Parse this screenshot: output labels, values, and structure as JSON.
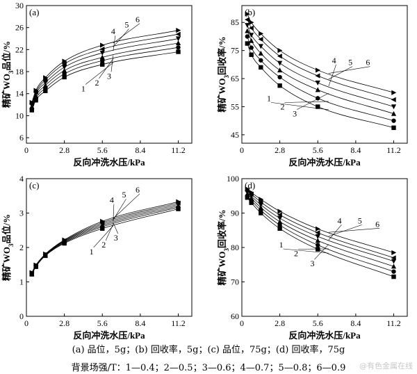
{
  "chart_data": [
    {
      "type": "line",
      "panel": "(a)",
      "xlabel": "反向冲洗水压/kPa",
      "ylabel": "精矿WO3品位/%",
      "xticks": [
        0,
        2.8,
        5.6,
        8.4,
        11.2
      ],
      "xtick_labels": [
        "0",
        "2.8",
        "5.6",
        "8.4",
        "11.2"
      ],
      "yticks": [
        6,
        10,
        14,
        18,
        22,
        26,
        30
      ],
      "xlim": [
        0,
        12.2
      ],
      "ylim": [
        5,
        30
      ],
      "x": [
        0.4,
        0.7,
        1.4,
        2.8,
        5.6,
        11.2
      ],
      "series": [
        {
          "name": "1",
          "marker": "square",
          "values": [
            11.0,
            12.8,
            14.5,
            17.0,
            19.3,
            21.6
          ]
        },
        {
          "name": "2",
          "marker": "circle",
          "values": [
            11.3,
            13.2,
            15.0,
            17.6,
            20.0,
            22.4
          ]
        },
        {
          "name": "3",
          "marker": "triangle-up",
          "values": [
            11.6,
            13.6,
            15.5,
            18.2,
            20.6,
            23.2
          ]
        },
        {
          "name": "4",
          "marker": "triangle-down",
          "values": [
            11.9,
            14.0,
            16.0,
            18.8,
            21.4,
            24.0
          ]
        },
        {
          "name": "5",
          "marker": "triangle-left",
          "values": [
            12.2,
            14.3,
            16.5,
            19.4,
            22.1,
            24.8
          ]
        },
        {
          "name": "6",
          "marker": "triangle-right",
          "values": [
            12.4,
            14.6,
            16.9,
            19.9,
            22.8,
            25.5
          ]
        }
      ],
      "annotations": [
        {
          "text": "1",
          "x": 4.2,
          "y": 14.4
        },
        {
          "text": "2",
          "x": 5.2,
          "y": 15.5
        },
        {
          "text": "3",
          "x": 6.1,
          "y": 16.7
        },
        {
          "text": "4",
          "x": 6.4,
          "y": 24.8
        },
        {
          "text": "5",
          "x": 7.4,
          "y": 26.0
        },
        {
          "text": "6",
          "x": 8.2,
          "y": 27.0
        }
      ]
    },
    {
      "type": "line",
      "panel": "(b)",
      "xlabel": "反向冲洗水压/kPa",
      "ylabel": "精矿WO3回收率/%",
      "xticks": [
        0,
        2.8,
        5.6,
        8.4,
        11.2
      ],
      "xtick_labels": [
        "0",
        "2.8",
        "5.6",
        "8.4",
        "11.2"
      ],
      "yticks": [
        45,
        55,
        65,
        75,
        85
      ],
      "xlim": [
        0,
        12.2
      ],
      "ylim": [
        42,
        91
      ],
      "x": [
        0.4,
        0.7,
        1.4,
        2.8,
        5.6,
        11.2
      ],
      "series": [
        {
          "name": "1",
          "marker": "square",
          "values": [
            77.5,
            73.5,
            69.0,
            62.5,
            55.0,
            47.5
          ]
        },
        {
          "name": "2",
          "marker": "circle",
          "values": [
            80.0,
            76.0,
            71.5,
            65.5,
            58.0,
            50.0
          ]
        },
        {
          "name": "3",
          "marker": "triangle-up",
          "values": [
            82.0,
            78.5,
            74.0,
            68.0,
            61.0,
            52.5
          ]
        },
        {
          "name": "4",
          "marker": "triangle-down",
          "values": [
            84.0,
            80.5,
            76.5,
            70.5,
            63.5,
            55.0
          ]
        },
        {
          "name": "5",
          "marker": "triangle-left",
          "values": [
            86.0,
            83.0,
            79.0,
            73.0,
            66.0,
            57.5
          ]
        },
        {
          "name": "6",
          "marker": "triangle-right",
          "values": [
            88.0,
            85.0,
            81.0,
            75.0,
            68.0,
            60.0
          ]
        }
      ],
      "annotations": [
        {
          "text": "1",
          "x": 2.0,
          "y": 57.0
        },
        {
          "text": "2",
          "x": 3.0,
          "y": 54.0
        },
        {
          "text": "3",
          "x": 3.9,
          "y": 51.5
        },
        {
          "text": "4",
          "x": 6.8,
          "y": 70.5
        },
        {
          "text": "5",
          "x": 8.0,
          "y": 69.8
        },
        {
          "text": "6",
          "x": 9.3,
          "y": 69.8
        }
      ]
    },
    {
      "type": "line",
      "panel": "(c)",
      "xlabel": "反向冲洗水压/kPa",
      "ylabel": "精矿WO3品位/%",
      "xticks": [
        0,
        2.8,
        5.6,
        8.4,
        11.2
      ],
      "xtick_labels": [
        "0",
        "2.8",
        "5.6",
        "8.4",
        "11.2"
      ],
      "yticks": [
        0,
        1,
        2,
        3,
        4
      ],
      "xlim": [
        0,
        12.2
      ],
      "ylim": [
        0,
        4
      ],
      "x": [
        0.4,
        0.7,
        1.4,
        2.8,
        5.6,
        11.2
      ],
      "series": [
        {
          "name": "1",
          "marker": "square",
          "values": [
            1.22,
            1.44,
            1.76,
            2.12,
            2.55,
            3.12
          ]
        },
        {
          "name": "2",
          "marker": "circle",
          "values": [
            1.23,
            1.45,
            1.77,
            2.14,
            2.6,
            3.17
          ]
        },
        {
          "name": "3",
          "marker": "triangle-up",
          "values": [
            1.24,
            1.46,
            1.78,
            2.16,
            2.64,
            3.21
          ]
        },
        {
          "name": "4",
          "marker": "triangle-down",
          "values": [
            1.25,
            1.47,
            1.79,
            2.18,
            2.68,
            3.25
          ]
        },
        {
          "name": "5",
          "marker": "triangle-left",
          "values": [
            1.26,
            1.48,
            1.8,
            2.2,
            2.72,
            3.29
          ]
        },
        {
          "name": "6",
          "marker": "triangle-right",
          "values": [
            1.27,
            1.49,
            1.81,
            2.22,
            2.76,
            3.33
          ]
        }
      ],
      "annotations": [
        {
          "text": "1",
          "x": 4.8,
          "y": 1.8
        },
        {
          "text": "2",
          "x": 5.7,
          "y": 2.0
        },
        {
          "text": "3",
          "x": 6.6,
          "y": 2.2
        },
        {
          "text": "4",
          "x": 6.3,
          "y": 3.3
        },
        {
          "text": "5",
          "x": 7.2,
          "y": 3.45
        },
        {
          "text": "6",
          "x": 8.2,
          "y": 3.6
        }
      ]
    },
    {
      "type": "line",
      "panel": "(d)",
      "xlabel": "反向冲洗水压/kPa",
      "ylabel": "精矿WO3回收率/%",
      "xticks": [
        0,
        2.8,
        5.6,
        8.4,
        11.2
      ],
      "xtick_labels": [
        "0",
        "2.8",
        "5.6",
        "8.4",
        "11.2"
      ],
      "yticks": [
        60,
        70,
        80,
        90,
        100
      ],
      "xlim": [
        0,
        12.2
      ],
      "ylim": [
        60,
        100
      ],
      "x": [
        0.4,
        0.7,
        1.4,
        2.8,
        5.6,
        11.2
      ],
      "series": [
        {
          "name": "1",
          "marker": "square",
          "values": [
            94.5,
            93.0,
            90.0,
            85.5,
            79.5,
            71.5
          ]
        },
        {
          "name": "2",
          "marker": "circle",
          "values": [
            95.0,
            93.7,
            90.8,
            86.5,
            80.7,
            73.0
          ]
        },
        {
          "name": "3",
          "marker": "triangle-up",
          "values": [
            95.5,
            94.3,
            91.6,
            87.5,
            82.0,
            74.5
          ]
        },
        {
          "name": "4",
          "marker": "triangle-down",
          "values": [
            96.0,
            94.9,
            92.4,
            88.5,
            83.2,
            76.0
          ]
        },
        {
          "name": "5",
          "marker": "triangle-left",
          "values": [
            96.5,
            95.5,
            93.2,
            89.5,
            84.3,
            77.0
          ]
        },
        {
          "name": "6",
          "marker": "triangle-right",
          "values": [
            97.0,
            96.0,
            94.0,
            90.5,
            85.4,
            78.5
          ]
        }
      ],
      "annotations": [
        {
          "text": "1",
          "x": 2.9,
          "y": 80.0
        },
        {
          "text": "2",
          "x": 4.0,
          "y": 77.5
        },
        {
          "text": "3",
          "x": 5.2,
          "y": 74.5
        },
        {
          "text": "4",
          "x": 7.2,
          "y": 87.0
        },
        {
          "text": "5",
          "x": 8.7,
          "y": 87.0
        },
        {
          "text": "6",
          "x": 10.0,
          "y": 86.0
        }
      ]
    }
  ],
  "captions": {
    "line1": "(a) 品位，5g；(b) 回收率，5g；(c) 品位，75g；(d) 回收率，75g",
    "line2": "背景场强/T：1—0.4；2—0.5；3—0.6；4—0.7；5—0.8；6—0.9"
  },
  "watermark": "@有色金属在线"
}
